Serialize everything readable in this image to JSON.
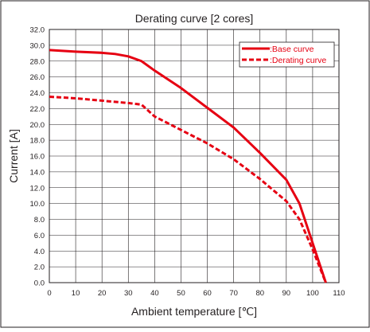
{
  "chart_data": {
    "type": "line",
    "title": "Derating curve [2 cores]",
    "xlabel": "Ambient temperature [℃]",
    "ylabel": "Current [A]",
    "xlim": [
      0,
      110
    ],
    "ylim": [
      0,
      32
    ],
    "x_ticks": [
      "0",
      "10",
      "20",
      "30",
      "40",
      "50",
      "60",
      "70",
      "80",
      "90",
      "100",
      "110"
    ],
    "y_ticks": [
      "0.0",
      "2.0",
      "4.0",
      "6.0",
      "8.0",
      "10.0",
      "12.0",
      "14.0",
      "16.0",
      "18.0",
      "20.0",
      "22.0",
      "24.0",
      "26.0",
      "28.0",
      "30.0",
      "32.0"
    ],
    "grid": true,
    "legend_position": "top-right",
    "series": [
      {
        "name": ":Base curve",
        "style": "solid",
        "color": "#e60012",
        "points": [
          [
            0,
            29.4
          ],
          [
            10,
            29.2
          ],
          [
            20,
            29.05
          ],
          [
            25,
            28.9
          ],
          [
            30,
            28.6
          ],
          [
            35,
            28.0
          ],
          [
            40,
            26.8
          ],
          [
            50,
            24.6
          ],
          [
            60,
            22.1
          ],
          [
            70,
            19.6
          ],
          [
            80,
            16.4
          ],
          [
            90,
            13.0
          ],
          [
            95,
            10.0
          ],
          [
            100,
            5.0
          ],
          [
            105,
            0
          ]
        ]
      },
      {
        "name": ":Derating curve",
        "style": "dashed",
        "color": "#e60012",
        "points": [
          [
            0,
            23.5
          ],
          [
            10,
            23.3
          ],
          [
            20,
            23.0
          ],
          [
            30,
            22.7
          ],
          [
            35,
            22.5
          ],
          [
            40,
            21.0
          ],
          [
            50,
            19.3
          ],
          [
            60,
            17.6
          ],
          [
            70,
            15.6
          ],
          [
            80,
            13.1
          ],
          [
            90,
            10.3
          ],
          [
            95,
            8.0
          ],
          [
            100,
            4.2
          ],
          [
            105,
            0
          ]
        ]
      }
    ]
  }
}
